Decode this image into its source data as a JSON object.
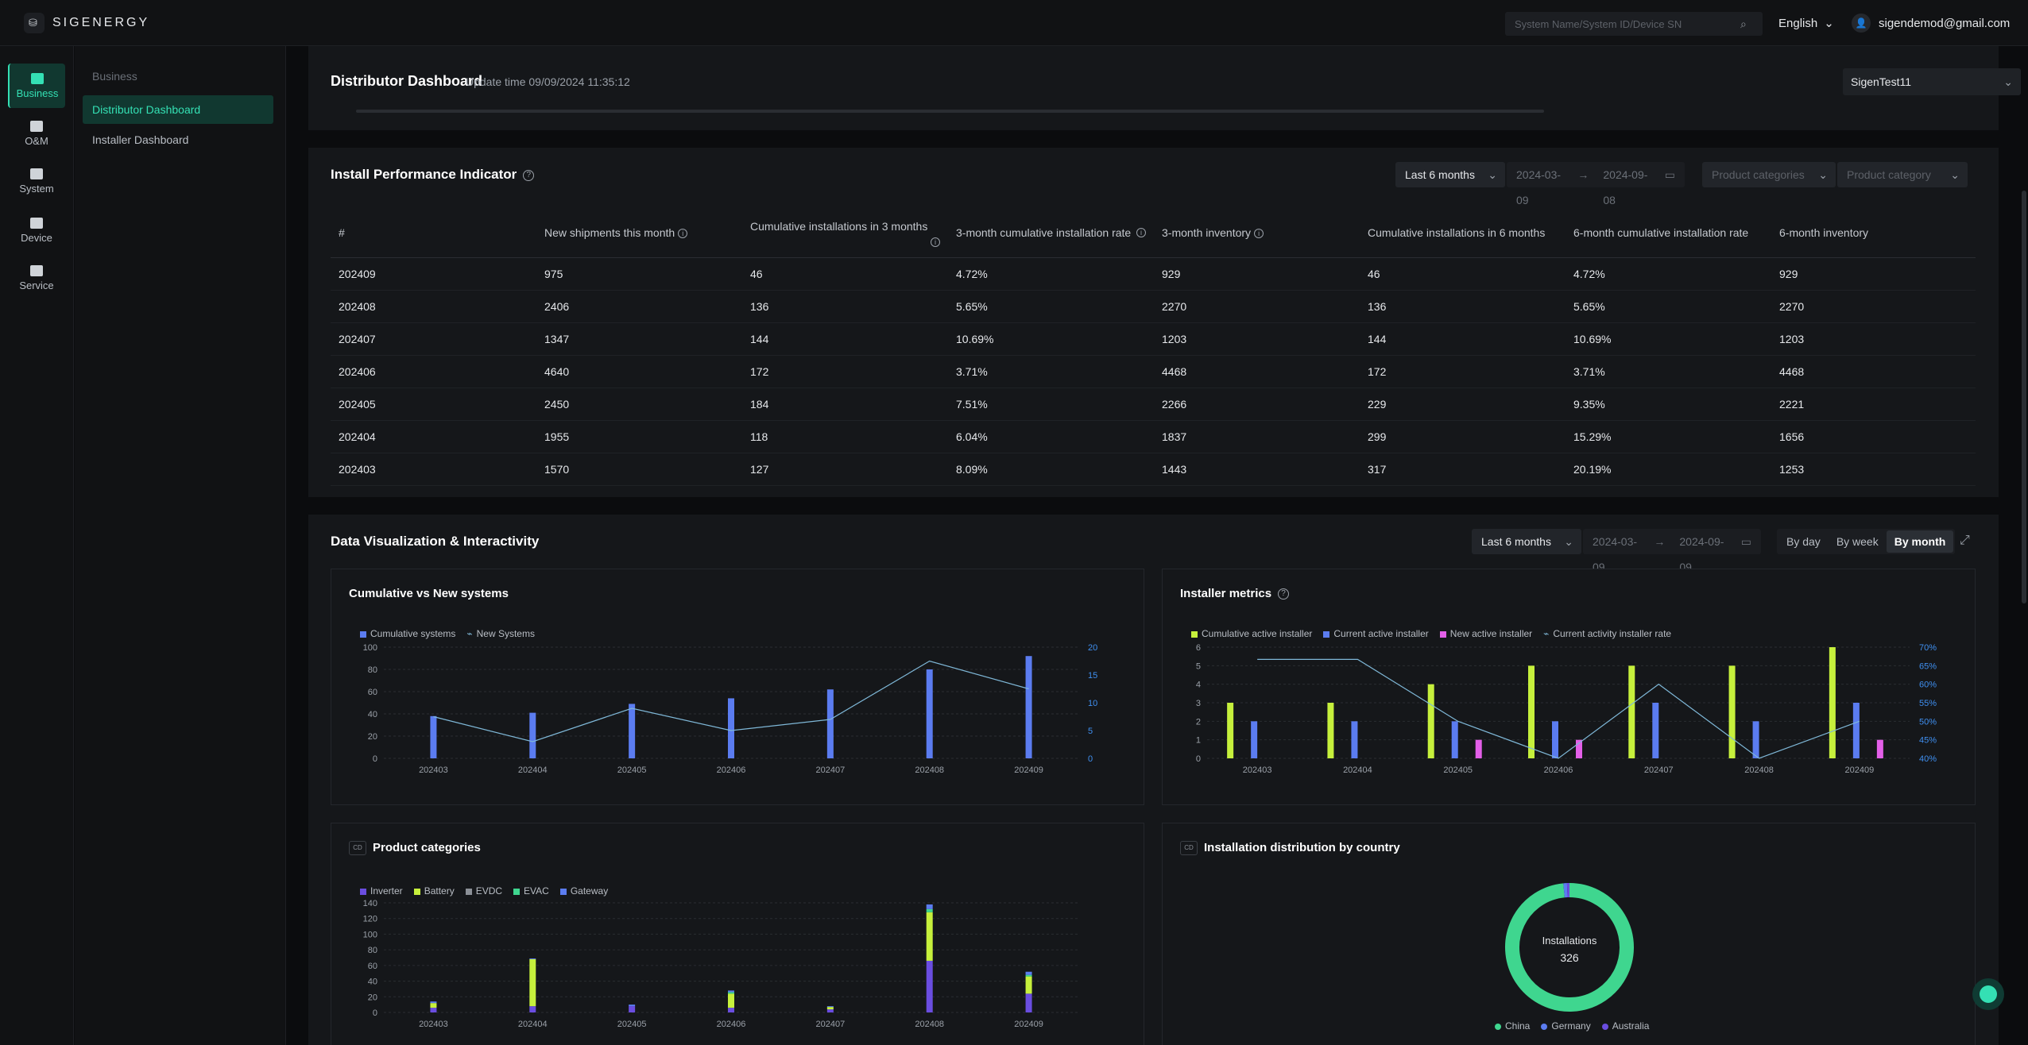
{
  "topbar": {
    "brand": "SIGENERGY",
    "search_placeholder": "System Name/System ID/Device SN",
    "language": "English",
    "user_email": "sigendemod@gmail.com"
  },
  "rail": [
    {
      "label": "Business",
      "icon": "business-icon",
      "active": true
    },
    {
      "label": "O&M",
      "icon": "om-icon",
      "active": false
    },
    {
      "label": "System",
      "icon": "home-icon",
      "active": false
    },
    {
      "label": "Device",
      "icon": "device-icon",
      "active": false
    },
    {
      "label": "Service",
      "icon": "headset-icon",
      "active": false
    }
  ],
  "subnav": {
    "group": "Business",
    "items": [
      {
        "label": "Distributor Dashboard",
        "active": true
      },
      {
        "label": "Installer Dashboard",
        "active": false
      }
    ]
  },
  "header": {
    "title": "Distributor Dashboard",
    "update_time": "Update time 09/09/2024 11:35:12",
    "tenant": "SigenTest11"
  },
  "performance": {
    "title": "Install Performance Indicator",
    "range": "Last 6 months",
    "date_start": "2024-03-09",
    "date_end": "2024-09-08",
    "filter1_placeholder": "Product categories",
    "filter2_placeholder": "Product category",
    "columns": [
      "#",
      "New shipments this month",
      "Cumulative installations in 3 months",
      "3-month cumulative installation rate",
      "3-month inventory",
      "Cumulative installations in 6 months",
      "6-month cumulative installation rate",
      "6-month inventory"
    ],
    "rows": [
      [
        "202409",
        "975",
        "46",
        "4.72%",
        "929",
        "46",
        "4.72%",
        "929"
      ],
      [
        "202408",
        "2406",
        "136",
        "5.65%",
        "2270",
        "136",
        "5.65%",
        "2270"
      ],
      [
        "202407",
        "1347",
        "144",
        "10.69%",
        "1203",
        "144",
        "10.69%",
        "1203"
      ],
      [
        "202406",
        "4640",
        "172",
        "3.71%",
        "4468",
        "172",
        "3.71%",
        "4468"
      ],
      [
        "202405",
        "2450",
        "184",
        "7.51%",
        "2266",
        "229",
        "9.35%",
        "2221"
      ],
      [
        "202404",
        "1955",
        "118",
        "6.04%",
        "1837",
        "299",
        "15.29%",
        "1656"
      ],
      [
        "202403",
        "1570",
        "127",
        "8.09%",
        "1443",
        "317",
        "20.19%",
        "1253"
      ]
    ]
  },
  "visual": {
    "title": "Data Visualization & Interactivity",
    "range": "Last 6 months",
    "date_start": "2024-03-09",
    "date_end": "2024-09-09",
    "granularity": [
      "By day",
      "By week",
      "By month"
    ],
    "granularity_selected": "By month"
  },
  "colors": {
    "accent": "#34e0b4",
    "blue": "#5b7cf0",
    "lime": "#c6f03c",
    "magenta": "#e35fe8",
    "violet": "#6a4de0",
    "line": "#7fb8d8"
  },
  "chart_data": [
    {
      "id": "cumulative",
      "type": "bar",
      "title": "Cumulative vs New systems",
      "categories": [
        "202403",
        "202404",
        "202405",
        "202406",
        "202407",
        "202408",
        "202409"
      ],
      "series": [
        {
          "name": "Cumulative systems",
          "type": "bar",
          "axis": "left",
          "values": [
            38,
            41,
            49,
            54,
            62,
            80,
            92
          ]
        },
        {
          "name": "New Systems",
          "type": "line",
          "axis": "right",
          "values": [
            7.5,
            3,
            9,
            5,
            7,
            17.5,
            12.5
          ]
        }
      ],
      "ylim": [
        0,
        100
      ],
      "yticks": [
        0,
        20,
        40,
        60,
        80,
        100
      ],
      "y2lim": [
        0,
        20
      ],
      "y2ticks": [
        0,
        5,
        10,
        15,
        20
      ]
    },
    {
      "id": "installer",
      "type": "bar",
      "title": "Installer metrics",
      "categories": [
        "202403",
        "202404",
        "202405",
        "202406",
        "202407",
        "202408",
        "202409"
      ],
      "series": [
        {
          "name": "Cumulative active installer",
          "type": "bar",
          "axis": "left",
          "values": [
            3,
            3,
            4,
            5,
            5,
            5,
            6
          ]
        },
        {
          "name": "Current active installer",
          "type": "bar",
          "axis": "left",
          "values": [
            2,
            2,
            2,
            2,
            3,
            2,
            3
          ]
        },
        {
          "name": "New active installer",
          "type": "bar",
          "axis": "left",
          "values": [
            0,
            0,
            1,
            1,
            0,
            0,
            1
          ]
        },
        {
          "name": "Current activity installer rate",
          "type": "line",
          "axis": "right",
          "values": [
            66.7,
            66.7,
            50,
            40,
            60,
            40,
            50
          ]
        }
      ],
      "ylim": [
        0,
        6
      ],
      "yticks": [
        0,
        1,
        2,
        3,
        4,
        5,
        6
      ],
      "y2lim": [
        40,
        70
      ],
      "y2ticks": [
        "40%",
        "45%",
        "50%",
        "55%",
        "60%",
        "65%",
        "70%"
      ]
    },
    {
      "id": "product",
      "type": "bar",
      "title": "Product categories",
      "categories": [
        "202403",
        "202404",
        "202405",
        "202406",
        "202407",
        "202408",
        "202409"
      ],
      "series": [
        {
          "name": "Inverter",
          "values": [
            6,
            8,
            8,
            6,
            4,
            66,
            24
          ]
        },
        {
          "name": "Battery",
          "values": [
            6,
            60,
            0,
            18,
            3,
            62,
            22
          ]
        },
        {
          "name": "EVDC",
          "values": [
            0,
            0,
            0,
            0,
            0,
            0,
            0
          ]
        },
        {
          "name": "EVAC",
          "values": [
            0,
            0,
            0,
            2,
            0,
            4,
            2
          ]
        },
        {
          "name": "Gateway",
          "values": [
            2,
            1,
            2,
            2,
            1,
            6,
            4
          ]
        }
      ],
      "ylim": [
        0,
        140
      ],
      "yticks": [
        0,
        20,
        40,
        60,
        80,
        100,
        120,
        140
      ]
    },
    {
      "id": "country",
      "type": "pie",
      "title": "Installation distribution by country",
      "center_label": "Installations",
      "center_value": "326",
      "categories": [
        "China",
        "Germany",
        "Australia"
      ],
      "values": [
        321,
        3,
        2
      ]
    }
  ]
}
